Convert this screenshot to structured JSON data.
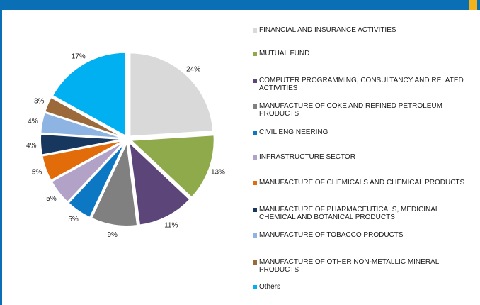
{
  "chart_data": {
    "type": "pie",
    "title": "",
    "slices": [
      {
        "label": "FINANCIAL AND INSURANCE ACTIVITIES",
        "value": 24,
        "display": "24%",
        "color": "#d9d9d9"
      },
      {
        "label": "MUTUAL FUND",
        "value": 13,
        "display": "13%",
        "color": "#8faa4b"
      },
      {
        "label": "COMPUTER PROGRAMMING, CONSULTANCY AND RELATED ACTIVITIES",
        "value": 11,
        "display": "11%",
        "color": "#5c4679"
      },
      {
        "label": "MANUFACTURE OF COKE AND REFINED PETROLEUM PRODUCTS",
        "value": 9,
        "display": "9%",
        "color": "#808080"
      },
      {
        "label": "CIVIL ENGINEERING",
        "value": 5,
        "display": "5%",
        "color": "#0c77c2"
      },
      {
        "label": "INFRASTRUCTURE SECTOR",
        "value": 5,
        "display": "5%",
        "color": "#b3a2c8"
      },
      {
        "label": "MANUFACTURE OF CHEMICALS AND CHEMICAL PRODUCTS",
        "value": 5,
        "display": "5%",
        "color": "#e36c0a"
      },
      {
        "label": "MANUFACTURE OF PHARMACEUTICALS, MEDICINAL CHEMICAL AND BOTANICAL PRODUCTS",
        "value": 4,
        "display": "4%",
        "color": "#17375e"
      },
      {
        "label": "MANUFACTURE OF TOBACCO PRODUCTS",
        "value": 4,
        "display": "4%",
        "color": "#8db4e2"
      },
      {
        "label": "MANUFACTURE OF OTHER NON-METALLIC MINERAL PRODUCTS",
        "value": 3,
        "display": "3%",
        "color": "#9c6a3a"
      },
      {
        "label": "Others",
        "value": 17,
        "display": "17%",
        "color": "#00b0f0"
      }
    ],
    "legend_position": "right"
  },
  "theme": {
    "bar_color": "#0a6fb5",
    "accent_color": "#f5b21b"
  }
}
